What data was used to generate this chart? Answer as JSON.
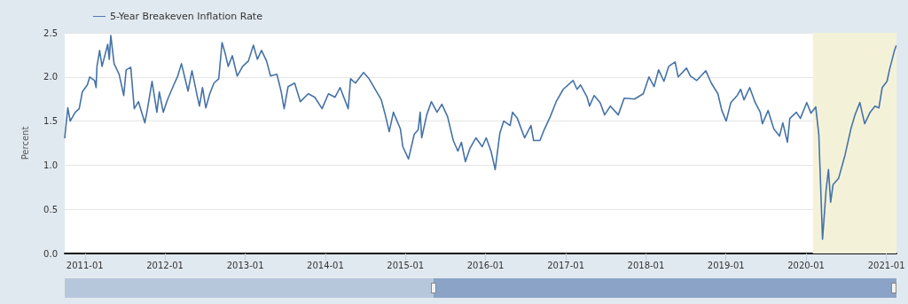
{
  "chart_data": {
    "type": "line",
    "ylabel": "Percent",
    "legend": "top left",
    "grid": "y",
    "marker": "none",
    "line_style": "solid",
    "xlim": [
      "2010-10-01",
      "2021-02-16"
    ],
    "xticks": [
      "2011-01",
      "2012-01",
      "2013-01",
      "2014-01",
      "2015-01",
      "2016-01",
      "2017-01",
      "2018-01",
      "2019-01",
      "2020-01",
      "2021-01"
    ],
    "ylim": [
      0,
      2.5
    ],
    "yticks": [
      {
        "value": 0,
        "label": "0.0"
      },
      {
        "value": 0.5,
        "label": "0.5"
      },
      {
        "value": 1,
        "label": "1.0"
      },
      {
        "value": 1.5,
        "label": "1.5"
      },
      {
        "value": 2,
        "label": "2.0"
      },
      {
        "value": 2.5,
        "label": "2.5"
      }
    ],
    "bands": [
      {
        "axis": "x",
        "from": "2020-02-01",
        "to": "2021-02-16",
        "color": "#f3f2d9"
      }
    ],
    "x": [
      "2010-10-01",
      "2010-10-15",
      "2010-10-26",
      "2010-11-18",
      "2010-12-06",
      "2010-12-20",
      "2011-01-12",
      "2011-01-23",
      "2011-02-14",
      "2011-02-21",
      "2011-02-25",
      "2011-03-09",
      "2011-03-20",
      "2011-04-15",
      "2011-04-22",
      "2011-04-29",
      "2011-05-14",
      "2011-06-06",
      "2011-06-27",
      "2011-07-08",
      "2011-07-29",
      "2011-08-14",
      "2011-09-02",
      "2011-10-01",
      "2011-10-12",
      "2011-11-03",
      "2011-11-25",
      "2011-12-06",
      "2011-12-24",
      "2012-01-12",
      "2012-02-10",
      "2012-02-28",
      "2012-03-16",
      "2012-04-15",
      "2012-05-03",
      "2012-05-28",
      "2012-06-06",
      "2012-06-20",
      "2012-07-05",
      "2012-07-23",
      "2012-08-11",
      "2012-09-02",
      "2012-09-17",
      "2012-10-01",
      "2012-10-15",
      "2012-11-03",
      "2012-11-25",
      "2012-12-20",
      "2013-01-15",
      "2013-02-07",
      "2013-02-25",
      "2013-03-16",
      "2013-04-08",
      "2013-04-26",
      "2013-05-25",
      "2013-06-13",
      "2013-06-27",
      "2013-07-15",
      "2013-08-14",
      "2013-09-09",
      "2013-10-15",
      "2013-11-14",
      "2013-12-17",
      "2014-01-15",
      "2014-02-14",
      "2014-03-09",
      "2014-04-15",
      "2014-04-26",
      "2014-05-18",
      "2014-06-24",
      "2014-07-19",
      "2014-09-13",
      "2014-10-01",
      "2014-10-19",
      "2014-11-07",
      "2014-12-09",
      "2014-12-20",
      "2015-01-15",
      "2015-02-10",
      "2015-02-28",
      "2015-03-09",
      "2015-03-16",
      "2015-04-08",
      "2015-04-29",
      "2015-05-25",
      "2015-06-16",
      "2015-07-12",
      "2015-08-07",
      "2015-08-28",
      "2015-09-13",
      "2015-10-01",
      "2015-10-22",
      "2015-11-18",
      "2015-12-17",
      "2016-01-04",
      "2016-01-26",
      "2016-02-14",
      "2016-03-06",
      "2016-03-24",
      "2016-04-22",
      "2016-05-03",
      "2016-05-25",
      "2016-06-27",
      "2016-07-26",
      "2016-08-07",
      "2016-09-05",
      "2016-09-24",
      "2016-10-22",
      "2016-11-18",
      "2016-12-20",
      "2017-02-03",
      "2017-02-21",
      "2017-03-09",
      "2017-04-08",
      "2017-04-19",
      "2017-05-10",
      "2017-06-06",
      "2017-06-27",
      "2017-07-23",
      "2017-08-28",
      "2017-09-24",
      "2017-11-10",
      "2017-12-20",
      "2018-01-15",
      "2018-02-07",
      "2018-02-28",
      "2018-03-24",
      "2018-04-15",
      "2018-05-14",
      "2018-05-28",
      "2018-07-05",
      "2018-07-23",
      "2018-08-21",
      "2018-10-01",
      "2018-10-26",
      "2018-11-25",
      "2018-12-13",
      "2019-01-02",
      "2019-01-23",
      "2019-02-21",
      "2019-03-09",
      "2019-03-24",
      "2019-04-19",
      "2019-05-14",
      "2019-06-06",
      "2019-06-16",
      "2019-07-12",
      "2019-08-07",
      "2019-09-02",
      "2019-09-17",
      "2019-10-08",
      "2019-10-19",
      "2019-11-18",
      "2019-12-06",
      "2020-01-04",
      "2020-01-23",
      "2020-02-14",
      "2020-02-28",
      "2020-03-16",
      "2020-04-01",
      "2020-04-12",
      "2020-04-22",
      "2020-05-03",
      "2020-05-28",
      "2020-06-27",
      "2020-07-23",
      "2020-08-11",
      "2020-09-02",
      "2020-09-24",
      "2020-10-19",
      "2020-11-10",
      "2020-11-28",
      "2020-12-13",
      "2021-01-04",
      "2021-01-15",
      "2021-02-07",
      "2021-02-14"
    ],
    "series": [
      {
        "name": "5-Year Breakeven Inflation Rate",
        "color": "#4572a7",
        "values": [
          1.31,
          1.65,
          1.5,
          1.6,
          1.64,
          1.83,
          1.91,
          2.0,
          1.96,
          1.88,
          2.12,
          2.3,
          2.12,
          2.37,
          2.2,
          2.47,
          2.15,
          2.03,
          1.79,
          2.08,
          2.11,
          1.64,
          1.72,
          1.48,
          1.62,
          1.95,
          1.6,
          1.83,
          1.6,
          1.74,
          1.91,
          2.01,
          2.15,
          1.84,
          2.07,
          1.77,
          1.67,
          1.88,
          1.65,
          1.81,
          1.93,
          1.98,
          2.39,
          2.27,
          2.12,
          2.24,
          2.01,
          2.12,
          2.18,
          2.36,
          2.2,
          2.3,
          2.18,
          2.01,
          2.03,
          1.84,
          1.64,
          1.89,
          1.93,
          1.72,
          1.81,
          1.77,
          1.64,
          1.81,
          1.77,
          1.88,
          1.64,
          1.98,
          1.93,
          2.05,
          1.98,
          1.74,
          1.57,
          1.38,
          1.6,
          1.41,
          1.21,
          1.07,
          1.35,
          1.4,
          1.6,
          1.31,
          1.57,
          1.72,
          1.6,
          1.69,
          1.55,
          1.28,
          1.16,
          1.26,
          1.04,
          1.19,
          1.31,
          1.21,
          1.31,
          1.16,
          0.95,
          1.36,
          1.5,
          1.45,
          1.6,
          1.53,
          1.31,
          1.45,
          1.28,
          1.28,
          1.4,
          1.55,
          1.72,
          1.86,
          1.96,
          1.86,
          1.91,
          1.77,
          1.67,
          1.79,
          1.71,
          1.57,
          1.67,
          1.57,
          1.76,
          1.75,
          1.81,
          2.0,
          1.89,
          2.08,
          1.95,
          2.12,
          2.17,
          2.0,
          2.1,
          2.01,
          1.96,
          2.07,
          1.93,
          1.81,
          1.62,
          1.5,
          1.71,
          1.79,
          1.86,
          1.74,
          1.88,
          1.71,
          1.6,
          1.47,
          1.62,
          1.41,
          1.33,
          1.48,
          1.26,
          1.53,
          1.6,
          1.53,
          1.71,
          1.59,
          1.66,
          1.35,
          0.16,
          0.71,
          0.95,
          0.58,
          0.78,
          0.85,
          1.12,
          1.41,
          1.57,
          1.71,
          1.47,
          1.6,
          1.67,
          1.65,
          1.88,
          1.95,
          2.08,
          2.3,
          2.35
        ]
      }
    ]
  }
}
